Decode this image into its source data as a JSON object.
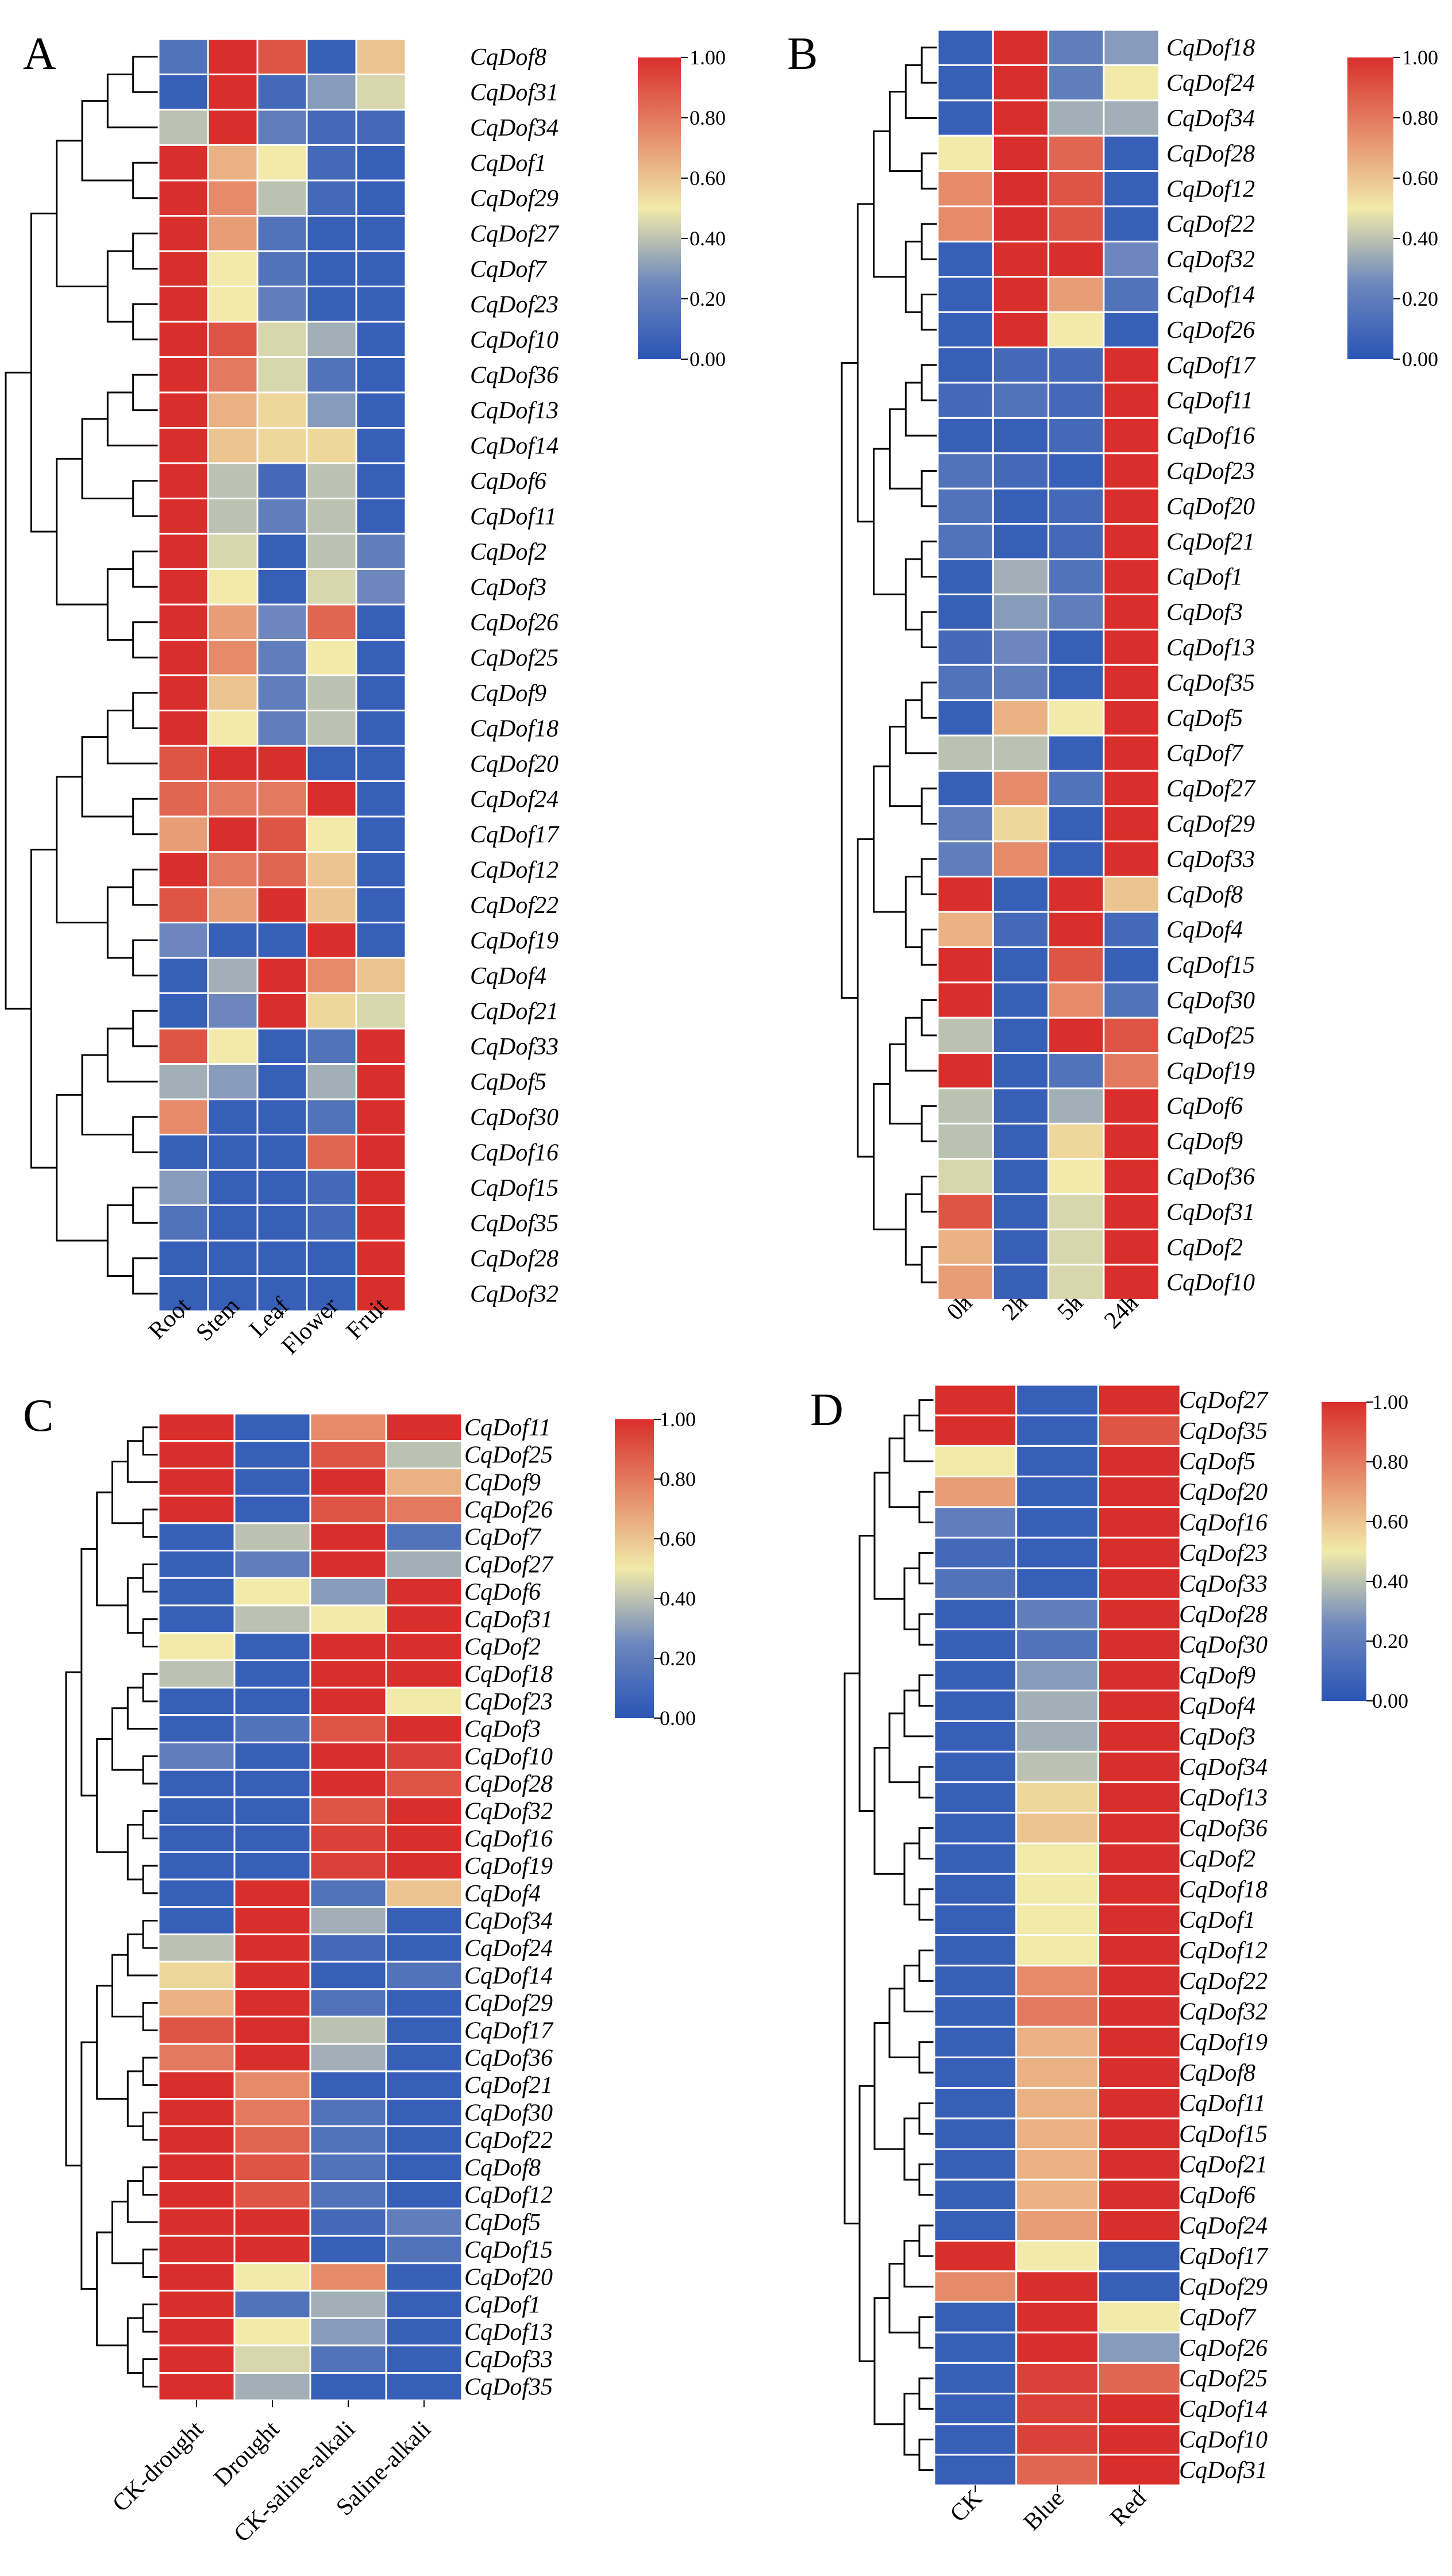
{
  "colors": {
    "low": "#2a55b5",
    "mid_low": "#6d87be",
    "mid": "#f1eaa9",
    "mid_high": "#e58b6a",
    "high": "#d92f2c",
    "cell_border": "#ffffff",
    "dendrogram": "#000000"
  },
  "colorbar_ticks": [
    "1.00",
    "0.80",
    "0.60",
    "0.40",
    "0.20",
    "0.00"
  ],
  "chart_data": [
    {
      "type": "heatmap",
      "panel": "A",
      "columns": [
        "Root",
        "Stem",
        "Leaf",
        "Flower",
        "Fruit"
      ],
      "rows": [
        "CqDof8",
        "CqDof31",
        "CqDof34",
        "CqDof1",
        "CqDof29",
        "CqDof27",
        "CqDof7",
        "CqDof23",
        "CqDof10",
        "CqDof36",
        "CqDof13",
        "CqDof14",
        "CqDof6",
        "CqDof11",
        "CqDof2",
        "CqDof3",
        "CqDof26",
        "CqDof25",
        "CqDof9",
        "CqDof18",
        "CqDof20",
        "CqDof24",
        "CqDof17",
        "CqDof12",
        "CqDof22",
        "CqDof19",
        "CqDof4",
        "CqDof21",
        "CqDof33",
        "CqDof5",
        "CqDof30",
        "CqDof16",
        "CqDof15",
        "CqDof35",
        "CqDof28",
        "CqDof32"
      ],
      "values": [
        [
          0.15,
          1.0,
          0.9,
          0.05,
          0.6
        ],
        [
          0.05,
          1.0,
          0.1,
          0.3,
          0.45
        ],
        [
          0.4,
          1.0,
          0.2,
          0.1,
          0.1
        ],
        [
          1.0,
          0.65,
          0.5,
          0.1,
          0.05
        ],
        [
          1.0,
          0.75,
          0.4,
          0.1,
          0.05
        ],
        [
          1.0,
          0.7,
          0.15,
          0.05,
          0.05
        ],
        [
          1.0,
          0.5,
          0.15,
          0.05,
          0.05
        ],
        [
          1.0,
          0.5,
          0.2,
          0.05,
          0.05
        ],
        [
          1.0,
          0.9,
          0.45,
          0.35,
          0.05
        ],
        [
          1.0,
          0.8,
          0.45,
          0.15,
          0.05
        ],
        [
          1.0,
          0.65,
          0.55,
          0.3,
          0.05
        ],
        [
          1.0,
          0.6,
          0.55,
          0.55,
          0.05
        ],
        [
          1.0,
          0.4,
          0.1,
          0.4,
          0.05
        ],
        [
          1.0,
          0.4,
          0.2,
          0.4,
          0.05
        ],
        [
          1.0,
          0.45,
          0.05,
          0.4,
          0.2
        ],
        [
          1.0,
          0.5,
          0.05,
          0.45,
          0.25
        ],
        [
          1.0,
          0.7,
          0.25,
          0.85,
          0.05
        ],
        [
          1.0,
          0.75,
          0.2,
          0.5,
          0.05
        ],
        [
          1.0,
          0.6,
          0.2,
          0.4,
          0.05
        ],
        [
          1.0,
          0.5,
          0.2,
          0.4,
          0.05
        ],
        [
          0.9,
          1.0,
          1.0,
          0.05,
          0.05
        ],
        [
          0.85,
          0.8,
          0.8,
          1.0,
          0.05
        ],
        [
          0.7,
          1.0,
          0.9,
          0.5,
          0.05
        ],
        [
          1.0,
          0.8,
          0.85,
          0.6,
          0.05
        ],
        [
          0.9,
          0.7,
          1.0,
          0.6,
          0.05
        ],
        [
          0.25,
          0.05,
          0.05,
          1.0,
          0.05
        ],
        [
          0.05,
          0.35,
          1.0,
          0.75,
          0.6
        ],
        [
          0.05,
          0.25,
          1.0,
          0.55,
          0.45
        ],
        [
          0.9,
          0.5,
          0.05,
          0.15,
          1.0
        ],
        [
          0.35,
          0.3,
          0.05,
          0.35,
          1.0
        ],
        [
          0.75,
          0.05,
          0.05,
          0.15,
          1.0
        ],
        [
          0.05,
          0.05,
          0.05,
          0.85,
          1.0
        ],
        [
          0.3,
          0.05,
          0.05,
          0.1,
          1.0
        ],
        [
          0.15,
          0.05,
          0.05,
          0.1,
          1.0
        ],
        [
          0.05,
          0.05,
          0.05,
          0.05,
          1.0
        ],
        [
          0.05,
          0.05,
          0.05,
          0.05,
          1.0
        ]
      ]
    },
    {
      "type": "heatmap",
      "panel": "B",
      "columns": [
        "0h",
        "2h",
        "5h",
        "24h"
      ],
      "rows": [
        "CqDof18",
        "CqDof24",
        "CqDof34",
        "CqDof28",
        "CqDof12",
        "CqDof22",
        "CqDof32",
        "CqDof14",
        "CqDof26",
        "CqDof17",
        "CqDof11",
        "CqDof16",
        "CqDof23",
        "CqDof20",
        "CqDof21",
        "CqDof1",
        "CqDof3",
        "CqDof13",
        "CqDof35",
        "CqDof5",
        "CqDof7",
        "CqDof27",
        "CqDof29",
        "CqDof33",
        "CqDof8",
        "CqDof4",
        "CqDof15",
        "CqDof30",
        "CqDof25",
        "CqDof19",
        "CqDof6",
        "CqDof9",
        "CqDof36",
        "CqDof31",
        "CqDof2",
        "CqDof10"
      ],
      "values": [
        [
          0.05,
          1.0,
          0.2,
          0.3
        ],
        [
          0.05,
          1.0,
          0.2,
          0.5
        ],
        [
          0.05,
          1.0,
          0.35,
          0.35
        ],
        [
          0.5,
          1.0,
          0.85,
          0.05
        ],
        [
          0.75,
          1.0,
          0.9,
          0.05
        ],
        [
          0.75,
          1.0,
          0.9,
          0.05
        ],
        [
          0.05,
          1.0,
          1.0,
          0.25
        ],
        [
          0.05,
          1.0,
          0.7,
          0.15
        ],
        [
          0.05,
          1.0,
          0.5,
          0.05
        ],
        [
          0.05,
          0.1,
          0.1,
          1.0
        ],
        [
          0.1,
          0.15,
          0.1,
          1.0
        ],
        [
          0.05,
          0.05,
          0.1,
          1.0
        ],
        [
          0.15,
          0.1,
          0.05,
          1.0
        ],
        [
          0.15,
          0.05,
          0.1,
          1.0
        ],
        [
          0.15,
          0.05,
          0.1,
          1.0
        ],
        [
          0.05,
          0.35,
          0.15,
          1.0
        ],
        [
          0.05,
          0.3,
          0.2,
          1.0
        ],
        [
          0.1,
          0.25,
          0.05,
          1.0
        ],
        [
          0.15,
          0.2,
          0.05,
          1.0
        ],
        [
          0.05,
          0.65,
          0.5,
          1.0
        ],
        [
          0.4,
          0.4,
          0.05,
          1.0
        ],
        [
          0.05,
          0.75,
          0.15,
          1.0
        ],
        [
          0.2,
          0.55,
          0.05,
          1.0
        ],
        [
          0.2,
          0.75,
          0.05,
          1.0
        ],
        [
          1.0,
          0.05,
          1.0,
          0.6
        ],
        [
          0.65,
          0.1,
          1.0,
          0.1
        ],
        [
          1.0,
          0.05,
          0.9,
          0.05
        ],
        [
          1.0,
          0.05,
          0.75,
          0.15
        ],
        [
          0.4,
          0.05,
          1.0,
          0.9
        ],
        [
          1.0,
          0.05,
          0.15,
          0.8
        ],
        [
          0.4,
          0.05,
          0.35,
          1.0
        ],
        [
          0.4,
          0.05,
          0.55,
          1.0
        ],
        [
          0.45,
          0.05,
          0.5,
          1.0
        ],
        [
          0.9,
          0.05,
          0.45,
          1.0
        ],
        [
          0.65,
          0.05,
          0.45,
          1.0
        ],
        [
          0.7,
          0.05,
          0.45,
          1.0
        ]
      ]
    },
    {
      "type": "heatmap",
      "panel": "C",
      "columns": [
        "CK-drought",
        "Drought",
        "CK-saline-alkali",
        "Saline-alkali"
      ],
      "rows": [
        "CqDof11",
        "CqDof25",
        "CqDof9",
        "CqDof26",
        "CqDof7",
        "CqDof27",
        "CqDof6",
        "CqDof31",
        "CqDof2",
        "CqDof18",
        "CqDof23",
        "CqDof3",
        "CqDof10",
        "CqDof28",
        "CqDof32",
        "CqDof16",
        "CqDof19",
        "CqDof4",
        "CqDof34",
        "CqDof24",
        "CqDof14",
        "CqDof29",
        "CqDof17",
        "CqDof36",
        "CqDof21",
        "CqDof30",
        "CqDof22",
        "CqDof8",
        "CqDof12",
        "CqDof5",
        "CqDof15",
        "CqDof20",
        "CqDof1",
        "CqDof13",
        "CqDof33",
        "CqDof35"
      ],
      "values": [
        [
          1.0,
          0.05,
          0.75,
          1.0
        ],
        [
          1.0,
          0.05,
          0.9,
          0.4
        ],
        [
          1.0,
          0.05,
          1.0,
          0.65
        ],
        [
          1.0,
          0.05,
          0.9,
          0.8
        ],
        [
          0.05,
          0.4,
          1.0,
          0.15
        ],
        [
          0.05,
          0.2,
          1.0,
          0.35
        ],
        [
          0.05,
          0.5,
          0.3,
          1.0
        ],
        [
          0.05,
          0.4,
          0.5,
          1.0
        ],
        [
          0.5,
          0.05,
          1.0,
          1.0
        ],
        [
          0.4,
          0.05,
          1.0,
          1.0
        ],
        [
          0.05,
          0.05,
          1.0,
          0.5
        ],
        [
          0.05,
          0.15,
          0.9,
          1.0
        ],
        [
          0.2,
          0.05,
          1.0,
          0.95
        ],
        [
          0.05,
          0.05,
          1.0,
          0.9
        ],
        [
          0.05,
          0.05,
          0.9,
          1.0
        ],
        [
          0.05,
          0.05,
          0.95,
          1.0
        ],
        [
          0.05,
          0.05,
          0.95,
          1.0
        ],
        [
          0.05,
          1.0,
          0.15,
          0.6
        ],
        [
          0.05,
          1.0,
          0.35,
          0.05
        ],
        [
          0.4,
          1.0,
          0.1,
          0.05
        ],
        [
          0.55,
          1.0,
          0.05,
          0.15
        ],
        [
          0.65,
          1.0,
          0.15,
          0.05
        ],
        [
          0.9,
          1.0,
          0.4,
          0.05
        ],
        [
          0.8,
          1.0,
          0.35,
          0.05
        ],
        [
          1.0,
          0.75,
          0.05,
          0.05
        ],
        [
          1.0,
          0.8,
          0.15,
          0.05
        ],
        [
          1.0,
          0.85,
          0.15,
          0.05
        ],
        [
          1.0,
          0.9,
          0.15,
          0.05
        ],
        [
          1.0,
          0.9,
          0.15,
          0.05
        ],
        [
          1.0,
          1.0,
          0.1,
          0.2
        ],
        [
          1.0,
          1.0,
          0.05,
          0.15
        ],
        [
          1.0,
          0.5,
          0.75,
          0.05
        ],
        [
          1.0,
          0.15,
          0.35,
          0.05
        ],
        [
          1.0,
          0.5,
          0.3,
          0.05
        ],
        [
          1.0,
          0.45,
          0.15,
          0.05
        ],
        [
          1.0,
          0.35,
          0.05,
          0.05
        ]
      ]
    },
    {
      "type": "heatmap",
      "panel": "D",
      "columns": [
        "CK",
        "Blue",
        "Red"
      ],
      "rows": [
        "CqDof27",
        "CqDof35",
        "CqDof5",
        "CqDof20",
        "CqDof16",
        "CqDof23",
        "CqDof33",
        "CqDof28",
        "CqDof30",
        "CqDof9",
        "CqDof4",
        "CqDof3",
        "CqDof34",
        "CqDof13",
        "CqDof36",
        "CqDof2",
        "CqDof18",
        "CqDof1",
        "CqDof12",
        "CqDof22",
        "CqDof32",
        "CqDof19",
        "CqDof8",
        "CqDof11",
        "CqDof15",
        "CqDof21",
        "CqDof6",
        "CqDof24",
        "CqDof17",
        "CqDof29",
        "CqDof7",
        "CqDof26",
        "CqDof25",
        "CqDof14",
        "CqDof10",
        "CqDof31"
      ],
      "values": [
        [
          1.0,
          0.05,
          1.0
        ],
        [
          1.0,
          0.05,
          0.9
        ],
        [
          0.5,
          0.05,
          1.0
        ],
        [
          0.7,
          0.05,
          1.0
        ],
        [
          0.2,
          0.05,
          1.0
        ],
        [
          0.1,
          0.05,
          1.0
        ],
        [
          0.15,
          0.05,
          1.0
        ],
        [
          0.05,
          0.2,
          1.0
        ],
        [
          0.05,
          0.15,
          1.0
        ],
        [
          0.05,
          0.3,
          1.0
        ],
        [
          0.05,
          0.35,
          1.0
        ],
        [
          0.05,
          0.35,
          1.0
        ],
        [
          0.05,
          0.4,
          1.0
        ],
        [
          0.05,
          0.55,
          1.0
        ],
        [
          0.05,
          0.6,
          1.0
        ],
        [
          0.05,
          0.5,
          1.0
        ],
        [
          0.05,
          0.5,
          1.0
        ],
        [
          0.05,
          0.5,
          1.0
        ],
        [
          0.05,
          0.5,
          1.0
        ],
        [
          0.05,
          0.75,
          1.0
        ],
        [
          0.05,
          0.8,
          1.0
        ],
        [
          0.05,
          0.65,
          1.0
        ],
        [
          0.05,
          0.65,
          1.0
        ],
        [
          0.05,
          0.65,
          1.0
        ],
        [
          0.05,
          0.65,
          1.0
        ],
        [
          0.05,
          0.65,
          1.0
        ],
        [
          0.05,
          0.65,
          1.0
        ],
        [
          0.05,
          0.7,
          1.0
        ],
        [
          1.0,
          0.5,
          0.05
        ],
        [
          0.75,
          1.0,
          0.05
        ],
        [
          0.05,
          1.0,
          0.5
        ],
        [
          0.05,
          1.0,
          0.3
        ],
        [
          0.05,
          0.95,
          0.85
        ],
        [
          0.05,
          0.95,
          1.0
        ],
        [
          0.05,
          0.95,
          1.0
        ],
        [
          0.05,
          0.85,
          1.0
        ]
      ]
    }
  ]
}
